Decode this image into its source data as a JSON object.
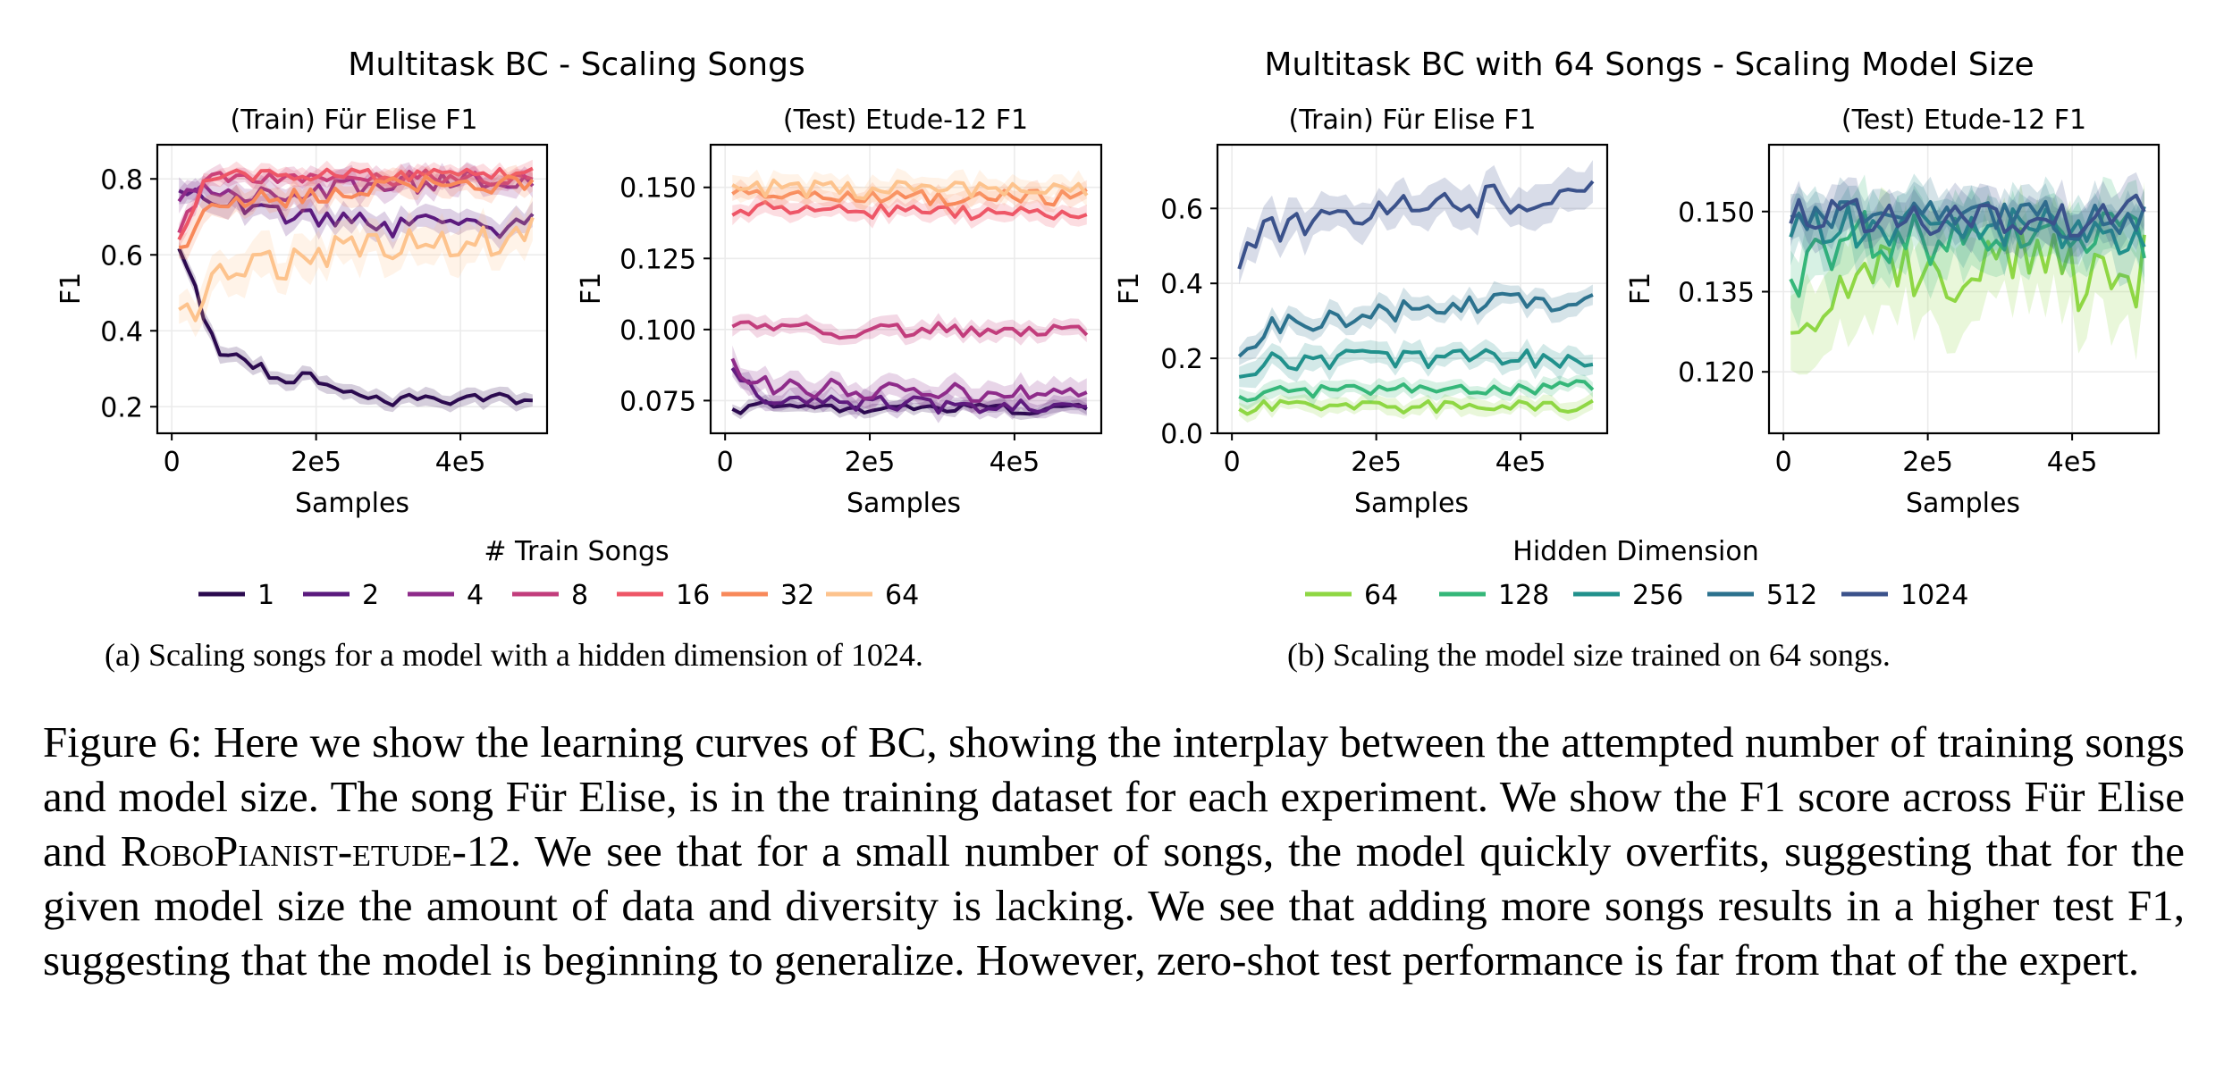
{
  "groups": [
    {
      "title": "Multitask BC - Scaling Songs",
      "legend_title": "# Train Songs",
      "caption": "(a) Scaling songs for a model with a hidden dimension of 1024."
    },
    {
      "title": "Multitask BC with 64 Songs - Scaling Model Size",
      "legend_title": "Hidden Dimension",
      "caption": "(b) Scaling the model size trained on 64 songs."
    }
  ],
  "chart_data": [
    {
      "type": "line",
      "title": "(Train) Für Elise F1",
      "xlabel": "Samples",
      "ylabel": "F1",
      "xlim": [
        -20000,
        520000
      ],
      "ylim": [
        0.13,
        0.89
      ],
      "xticks": [
        0,
        200000,
        400000
      ],
      "xtick_labels": [
        "0",
        "2e5",
        "4e5"
      ],
      "yticks": [
        0.2,
        0.4,
        0.6,
        0.8
      ],
      "ytick_labels": [
        "0.2",
        "0.4",
        "0.6",
        "0.8"
      ],
      "grid": true,
      "shaded_band": true,
      "series": [
        {
          "name": "1",
          "color": "#2b0a4f",
          "band": 0.02,
          "x": [
            10000,
            60000,
            100000,
            150000,
            200000,
            250000,
            300000,
            350000,
            400000,
            450000,
            500000
          ],
          "y": [
            0.63,
            0.36,
            0.32,
            0.28,
            0.27,
            0.24,
            0.22,
            0.22,
            0.22,
            0.22,
            0.21
          ]
        },
        {
          "name": "2",
          "color": "#5b1a7e",
          "band": 0.03,
          "x": [
            10000,
            50000,
            100000,
            150000,
            200000,
            250000,
            300000,
            350000,
            400000,
            450000,
            500000
          ],
          "y": [
            0.77,
            0.74,
            0.73,
            0.7,
            0.7,
            0.69,
            0.67,
            0.69,
            0.67,
            0.66,
            0.7
          ]
        },
        {
          "name": "4",
          "color": "#8e2b8a",
          "band": 0.03,
          "x": [
            10000,
            50000,
            100000,
            150000,
            200000,
            250000,
            300000,
            350000,
            400000,
            450000,
            500000
          ],
          "y": [
            0.75,
            0.78,
            0.76,
            0.76,
            0.77,
            0.78,
            0.78,
            0.79,
            0.8,
            0.8,
            0.8
          ]
        },
        {
          "name": "8",
          "color": "#c23d7c",
          "band": 0.02,
          "x": [
            10000,
            50000,
            100000,
            150000,
            200000,
            250000,
            300000,
            350000,
            400000,
            450000,
            500000
          ],
          "y": [
            0.66,
            0.8,
            0.8,
            0.8,
            0.81,
            0.8,
            0.8,
            0.81,
            0.8,
            0.8,
            0.81
          ]
        },
        {
          "name": "16",
          "color": "#ee5667",
          "band": 0.02,
          "x": [
            10000,
            50000,
            100000,
            150000,
            200000,
            250000,
            300000,
            350000,
            400000,
            450000,
            500000
          ],
          "y": [
            0.65,
            0.8,
            0.81,
            0.81,
            0.81,
            0.81,
            0.81,
            0.81,
            0.81,
            0.81,
            0.82
          ]
        },
        {
          "name": "32",
          "color": "#f8895a",
          "band": 0.03,
          "x": [
            10000,
            50000,
            100000,
            150000,
            200000,
            250000,
            300000,
            350000,
            400000,
            450000,
            500000
          ],
          "y": [
            0.6,
            0.72,
            0.74,
            0.75,
            0.76,
            0.77,
            0.78,
            0.79,
            0.78,
            0.79,
            0.79
          ]
        },
        {
          "name": "64",
          "color": "#fdc38d",
          "band": 0.05,
          "x": [
            10000,
            30000,
            60000,
            100000,
            150000,
            200000,
            250000,
            300000,
            350000,
            400000,
            450000,
            500000
          ],
          "y": [
            0.43,
            0.44,
            0.53,
            0.56,
            0.57,
            0.6,
            0.62,
            0.63,
            0.63,
            0.64,
            0.64,
            0.66
          ]
        }
      ]
    },
    {
      "type": "line",
      "title": "(Test) Etude-12 F1",
      "xlabel": "Samples",
      "ylabel": "F1",
      "xlim": [
        -20000,
        520000
      ],
      "ylim": [
        0.0635,
        0.165
      ],
      "xticks": [
        0,
        200000,
        400000
      ],
      "xtick_labels": [
        "0",
        "2e5",
        "4e5"
      ],
      "yticks": [
        0.075,
        0.1,
        0.125,
        0.15
      ],
      "ytick_labels": [
        "0.075",
        "0.100",
        "0.125",
        "0.150"
      ],
      "grid": true,
      "shaded_band": true,
      "series": [
        {
          "name": "1",
          "color": "#2b0a4f",
          "band": 0.002,
          "x": [
            10000,
            50000,
            100000,
            150000,
            200000,
            250000,
            300000,
            350000,
            400000,
            450000,
            500000
          ],
          "y": [
            0.071,
            0.074,
            0.073,
            0.073,
            0.072,
            0.073,
            0.072,
            0.073,
            0.072,
            0.072,
            0.072
          ]
        },
        {
          "name": "2",
          "color": "#5b1a7e",
          "band": 0.003,
          "x": [
            10000,
            50000,
            100000,
            150000,
            200000,
            250000,
            300000,
            350000,
            400000,
            450000,
            500000
          ],
          "y": [
            0.085,
            0.076,
            0.075,
            0.074,
            0.074,
            0.074,
            0.073,
            0.073,
            0.073,
            0.073,
            0.073
          ]
        },
        {
          "name": "4",
          "color": "#8e2b8a",
          "band": 0.004,
          "x": [
            10000,
            50000,
            100000,
            150000,
            200000,
            250000,
            300000,
            350000,
            400000,
            450000,
            500000
          ],
          "y": [
            0.088,
            0.081,
            0.08,
            0.079,
            0.079,
            0.078,
            0.078,
            0.077,
            0.077,
            0.077,
            0.077
          ]
        },
        {
          "name": "8",
          "color": "#c23d7c",
          "band": 0.003,
          "x": [
            10000,
            50000,
            100000,
            150000,
            200000,
            250000,
            300000,
            350000,
            400000,
            450000,
            500000
          ],
          "y": [
            0.103,
            0.1,
            0.1,
            0.099,
            0.1,
            0.099,
            0.1,
            0.1,
            0.1,
            0.099,
            0.1
          ]
        },
        {
          "name": "16",
          "color": "#ee5667",
          "band": 0.003,
          "x": [
            10000,
            50000,
            100000,
            150000,
            200000,
            250000,
            300000,
            350000,
            400000,
            450000,
            500000
          ],
          "y": [
            0.14,
            0.143,
            0.142,
            0.142,
            0.141,
            0.142,
            0.141,
            0.141,
            0.142,
            0.141,
            0.14
          ]
        },
        {
          "name": "32",
          "color": "#f8895a",
          "band": 0.003,
          "x": [
            10000,
            50000,
            100000,
            150000,
            200000,
            250000,
            300000,
            350000,
            400000,
            450000,
            500000
          ],
          "y": [
            0.148,
            0.147,
            0.147,
            0.148,
            0.146,
            0.147,
            0.146,
            0.147,
            0.147,
            0.146,
            0.147
          ]
        },
        {
          "name": "64",
          "color": "#fdc38d",
          "band": 0.004,
          "x": [
            10000,
            50000,
            100000,
            150000,
            200000,
            250000,
            300000,
            350000,
            400000,
            450000,
            500000
          ],
          "y": [
            0.15,
            0.149,
            0.15,
            0.149,
            0.149,
            0.149,
            0.149,
            0.149,
            0.149,
            0.149,
            0.149
          ]
        }
      ]
    },
    {
      "type": "line",
      "title": "(Train) Für Elise F1",
      "xlabel": "Samples",
      "ylabel": "F1",
      "xlim": [
        -20000,
        520000
      ],
      "ylim": [
        0.0,
        0.77
      ],
      "xticks": [
        0,
        200000,
        400000
      ],
      "xtick_labels": [
        "0",
        "2e5",
        "4e5"
      ],
      "yticks": [
        0.0,
        0.2,
        0.4,
        0.6
      ],
      "ytick_labels": [
        "0.0",
        "0.2",
        "0.4",
        "0.6"
      ],
      "grid": true,
      "shaded_band": true,
      "series": [
        {
          "name": "64",
          "color": "#8fd744",
          "band": 0.02,
          "x": [
            10000,
            50000,
            100000,
            150000,
            200000,
            250000,
            300000,
            350000,
            400000,
            450000,
            500000
          ],
          "y": [
            0.06,
            0.08,
            0.07,
            0.07,
            0.07,
            0.07,
            0.07,
            0.07,
            0.07,
            0.07,
            0.07
          ]
        },
        {
          "name": "128",
          "color": "#35b779",
          "band": 0.02,
          "x": [
            10000,
            50000,
            100000,
            150000,
            200000,
            250000,
            300000,
            350000,
            400000,
            450000,
            500000
          ],
          "y": [
            0.09,
            0.11,
            0.11,
            0.12,
            0.12,
            0.12,
            0.12,
            0.12,
            0.12,
            0.12,
            0.13
          ]
        },
        {
          "name": "256",
          "color": "#21918c",
          "band": 0.03,
          "x": [
            10000,
            50000,
            100000,
            150000,
            200000,
            250000,
            300000,
            350000,
            400000,
            450000,
            500000
          ],
          "y": [
            0.15,
            0.19,
            0.19,
            0.2,
            0.2,
            0.2,
            0.2,
            0.2,
            0.2,
            0.2,
            0.2
          ]
        },
        {
          "name": "512",
          "color": "#2c728e",
          "band": 0.03,
          "x": [
            10000,
            50000,
            100000,
            150000,
            200000,
            250000,
            300000,
            350000,
            400000,
            450000,
            500000
          ],
          "y": [
            0.21,
            0.29,
            0.3,
            0.3,
            0.32,
            0.33,
            0.34,
            0.35,
            0.35,
            0.35,
            0.36
          ]
        },
        {
          "name": "1024",
          "color": "#3b528b",
          "band": 0.05,
          "x": [
            10000,
            30000,
            60000,
            100000,
            150000,
            200000,
            250000,
            300000,
            350000,
            400000,
            450000,
            500000
          ],
          "y": [
            0.43,
            0.5,
            0.55,
            0.57,
            0.58,
            0.6,
            0.61,
            0.62,
            0.62,
            0.63,
            0.64,
            0.65
          ]
        }
      ]
    },
    {
      "type": "line",
      "title": "(Test) Etude-12 F1",
      "xlabel": "Samples",
      "ylabel": "F1",
      "xlim": [
        -20000,
        520000
      ],
      "ylim": [
        0.1085,
        0.1625
      ],
      "xticks": [
        0,
        200000,
        400000
      ],
      "xtick_labels": [
        "0",
        "2e5",
        "4e5"
      ],
      "yticks": [
        0.12,
        0.135,
        0.15
      ],
      "ytick_labels": [
        "0.120",
        "0.135",
        "0.150"
      ],
      "grid": true,
      "shaded_band": true,
      "series": [
        {
          "name": "64",
          "color": "#8fd744",
          "band": 0.009,
          "x": [
            10000,
            50000,
            100000,
            150000,
            200000,
            250000,
            300000,
            350000,
            400000,
            450000,
            500000
          ],
          "y": [
            0.123,
            0.134,
            0.138,
            0.139,
            0.139,
            0.139,
            0.14,
            0.14,
            0.139,
            0.139,
            0.138
          ]
        },
        {
          "name": "128",
          "color": "#35b779",
          "band": 0.006,
          "x": [
            10000,
            50000,
            100000,
            150000,
            200000,
            250000,
            300000,
            350000,
            400000,
            450000,
            500000
          ],
          "y": [
            0.137,
            0.142,
            0.145,
            0.145,
            0.145,
            0.146,
            0.145,
            0.146,
            0.145,
            0.146,
            0.144
          ]
        },
        {
          "name": "256",
          "color": "#21918c",
          "band": 0.005,
          "x": [
            10000,
            50000,
            100000,
            150000,
            200000,
            250000,
            300000,
            350000,
            400000,
            450000,
            500000
          ],
          "y": [
            0.149,
            0.146,
            0.147,
            0.147,
            0.147,
            0.147,
            0.147,
            0.147,
            0.147,
            0.146,
            0.146
          ]
        },
        {
          "name": "512",
          "color": "#2c728e",
          "band": 0.004,
          "x": [
            10000,
            50000,
            100000,
            150000,
            200000,
            250000,
            300000,
            350000,
            400000,
            450000,
            500000
          ],
          "y": [
            0.15,
            0.149,
            0.149,
            0.148,
            0.149,
            0.149,
            0.148,
            0.149,
            0.148,
            0.148,
            0.149
          ]
        },
        {
          "name": "1024",
          "color": "#3b528b",
          "band": 0.004,
          "x": [
            10000,
            50000,
            100000,
            150000,
            200000,
            250000,
            300000,
            350000,
            400000,
            450000,
            500000
          ],
          "y": [
            0.151,
            0.15,
            0.149,
            0.149,
            0.149,
            0.148,
            0.149,
            0.149,
            0.148,
            0.149,
            0.15
          ]
        }
      ]
    }
  ],
  "figure_caption": {
    "p1": "Figure 6:  Here we show the learning curves of BC, showing the interplay between the attempted number of training songs and model size.  The song Für Elise, is in the training dataset for each experiment.  We show the F1 score across Für Elise and ",
    "sc": "RoboPianist-etude-12",
    "p2": ".  We see that for a small number of songs, the model quickly overfits, suggesting that for the given model size the amount of data and diversity is lacking.  We see that adding more songs results in a higher test F1, suggesting that the model is beginning to generalize. However, zero-shot test performance is far from that of the expert."
  }
}
